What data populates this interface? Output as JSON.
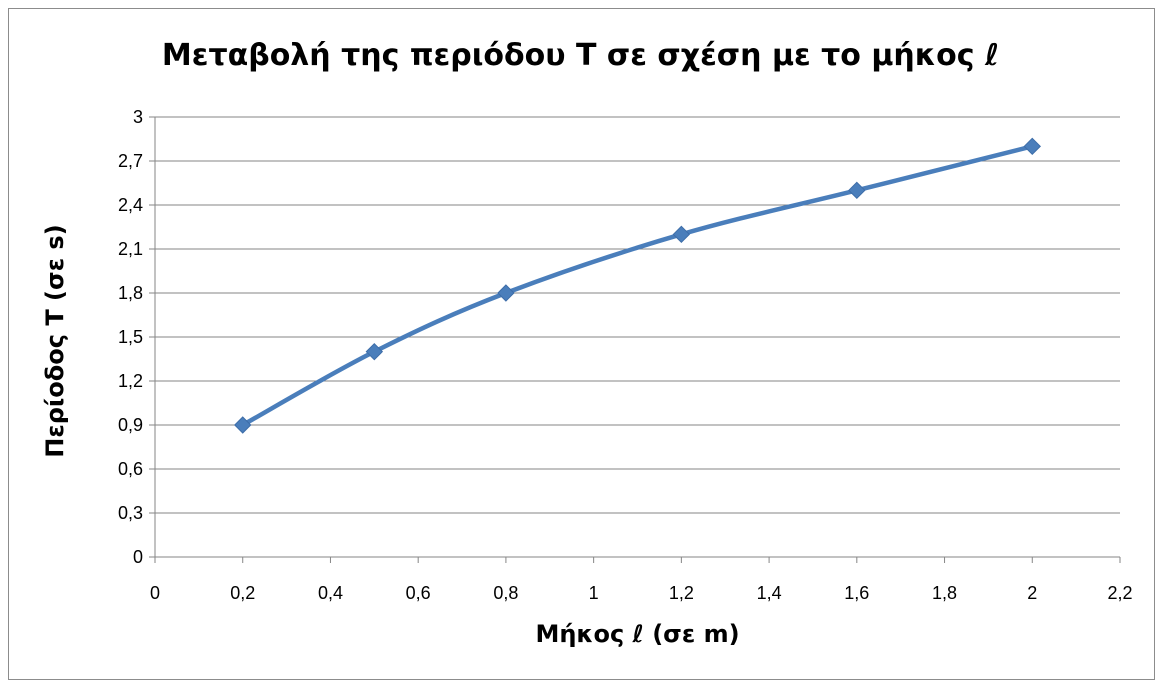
{
  "chart_data": {
    "type": "line",
    "title": "Μεταβολή της περιόδου Τ σε σχέση με το μήκος ℓ",
    "xlabel": "Μήκος ℓ (σε m)",
    "ylabel": "Περίοδος Τ (σε s)",
    "xlim": [
      0,
      2.2
    ],
    "ylim": [
      0,
      3
    ],
    "x_ticks": [
      "0",
      "0,2",
      "0,4",
      "0,6",
      "0,8",
      "1",
      "1,2",
      "1,4",
      "1,6",
      "1,8",
      "2",
      "2,2"
    ],
    "y_ticks": [
      "0",
      "0,3",
      "0,6",
      "0,9",
      "1,2",
      "1,5",
      "1,8",
      "2,1",
      "2,4",
      "2,7",
      "3"
    ],
    "grid": "horizontal",
    "legend": "none",
    "series": [
      {
        "x": [
          0.2,
          0.5,
          0.8,
          1.2,
          1.6,
          2.0
        ],
        "y": [
          0.9,
          1.4,
          1.8,
          2.2,
          2.5,
          2.8
        ],
        "color": "#4a7ebb",
        "marker": "diamond",
        "smooth": true
      }
    ]
  }
}
